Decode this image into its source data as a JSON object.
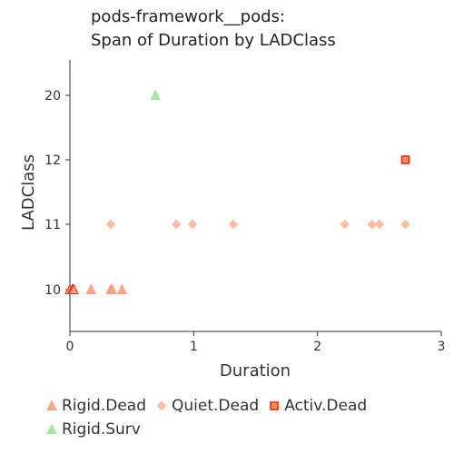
{
  "chart_data": {
    "type": "scatter",
    "title_lines": [
      "pods-framework__pods:",
      "Span of Duration by LADClass"
    ],
    "xlabel": "Duration",
    "ylabel": "LADClass",
    "xlim": [
      0,
      3
    ],
    "x_ticks": [
      "0",
      "1",
      "2",
      "3"
    ],
    "y_categories": [
      "10",
      "11",
      "12",
      "20"
    ],
    "grid": false,
    "legend_position": "bottom",
    "series": [
      {
        "name": "Rigid.Dead",
        "marker": "triangle",
        "color": "#ff9f80",
        "points": [
          {
            "x": 0.0,
            "y": "10"
          },
          {
            "x": 0.02,
            "y": "10"
          },
          {
            "x": 0.03,
            "y": "10"
          },
          {
            "x": 0.17,
            "y": "10"
          },
          {
            "x": 0.33,
            "y": "10"
          },
          {
            "x": 0.34,
            "y": "10"
          },
          {
            "x": 0.42,
            "y": "10"
          }
        ]
      },
      {
        "name": "Quiet.Dead",
        "marker": "diamond",
        "color": "#ffb899",
        "points": [
          {
            "x": 0.33,
            "y": "11"
          },
          {
            "x": 0.86,
            "y": "11"
          },
          {
            "x": 0.99,
            "y": "11"
          },
          {
            "x": 1.32,
            "y": "11"
          },
          {
            "x": 2.22,
            "y": "11"
          },
          {
            "x": 2.44,
            "y": "11"
          },
          {
            "x": 2.5,
            "y": "11"
          },
          {
            "x": 2.71,
            "y": "11"
          }
        ]
      },
      {
        "name": "Activ.Dead",
        "marker": "square",
        "color": "#ff8c66",
        "points": [
          {
            "x": 2.71,
            "y": "12"
          }
        ]
      },
      {
        "name": "Rigid.Surv",
        "marker": "triangle",
        "color": "#a8e0a0",
        "points": [
          {
            "x": 0.69,
            "y": "20"
          }
        ]
      }
    ],
    "highlight_color": "#e83000"
  }
}
